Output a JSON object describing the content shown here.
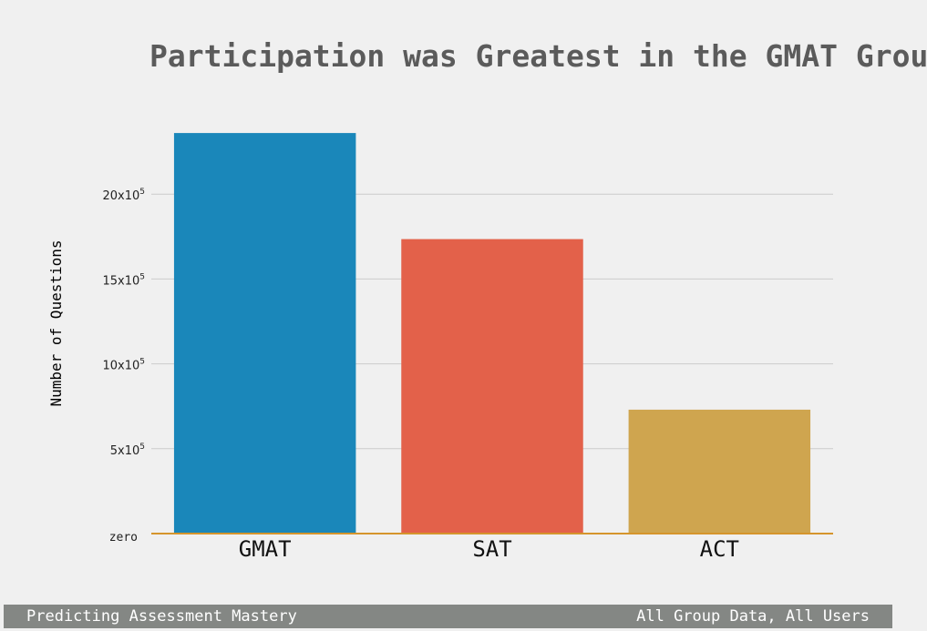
{
  "chart_data": {
    "type": "bar",
    "title": "Participation was Greatest in the GMAT Group",
    "ylabel": "Number of Questions",
    "xlabel": "",
    "categories": [
      "GMAT",
      "SAT",
      "ACT"
    ],
    "values": [
      2360000,
      1735000,
      730000
    ],
    "colors": [
      "#1a87ba",
      "#e3614a",
      "#cfa54f"
    ],
    "baseline_color": "#d5952c",
    "ylim": [
      0,
      2500000
    ],
    "yticks": [
      {
        "value": 0,
        "label": "zero",
        "base": "",
        "exp": ""
      },
      {
        "value": 500000,
        "label": "5x10^5",
        "base": "5x10",
        "exp": "5"
      },
      {
        "value": 1000000,
        "label": "10x10^5",
        "base": "10x10",
        "exp": "5"
      },
      {
        "value": 1500000,
        "label": "15x10^5",
        "base": "15x10",
        "exp": "5"
      },
      {
        "value": 2000000,
        "label": "20x10^5",
        "base": "20x10",
        "exp": "5"
      }
    ],
    "grid": true,
    "legend": "none"
  },
  "footer": {
    "left": "Predicting Assessment Mastery",
    "right": "All Group Data, All Users"
  }
}
